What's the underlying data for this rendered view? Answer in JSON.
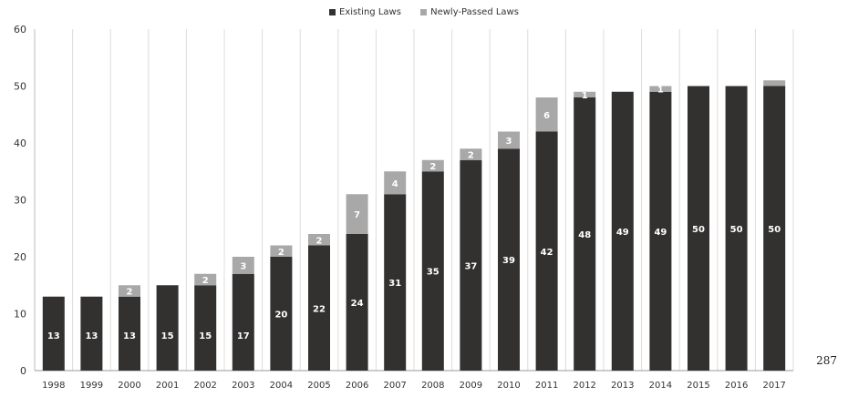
{
  "chart_data": {
    "type": "bar",
    "stacked": true,
    "title": "",
    "xlabel": "",
    "ylabel": "",
    "ylim": [
      0,
      60
    ],
    "yticks": [
      0,
      10,
      20,
      30,
      40,
      50,
      60
    ],
    "grid": "vertical",
    "legend_position": "top-center",
    "categories": [
      "1998",
      "1999",
      "2000",
      "2001",
      "2002",
      "2003",
      "2004",
      "2005",
      "2006",
      "2007",
      "2008",
      "2009",
      "2010",
      "2011",
      "2012",
      "2013",
      "2014",
      "2015",
      "2016",
      "2017"
    ],
    "series": [
      {
        "name": "Existing Laws",
        "color": "#333130",
        "values": [
          13,
          13,
          13,
          15,
          15,
          17,
          20,
          22,
          24,
          31,
          35,
          37,
          39,
          42,
          48,
          49,
          49,
          50,
          50,
          50
        ],
        "labels": [
          "13",
          "13",
          "13",
          "15",
          "15",
          "17",
          "20",
          "22",
          "24",
          "31",
          "35",
          "37",
          "39",
          "42",
          "48",
          "49",
          "49",
          "50",
          "50",
          "50"
        ]
      },
      {
        "name": "Newly-Passed Laws",
        "color": "#a8a8a8",
        "values": [
          0,
          0,
          2,
          0,
          2,
          3,
          2,
          2,
          7,
          4,
          2,
          2,
          3,
          6,
          1,
          0,
          1,
          0,
          0,
          1
        ],
        "labels": [
          "",
          "",
          "2",
          "",
          "2",
          "3",
          "2",
          "2",
          "7",
          "4",
          "2",
          "2",
          "3",
          "6",
          "1",
          "",
          "1",
          "",
          "",
          ""
        ]
      }
    ]
  },
  "page_number": "287"
}
